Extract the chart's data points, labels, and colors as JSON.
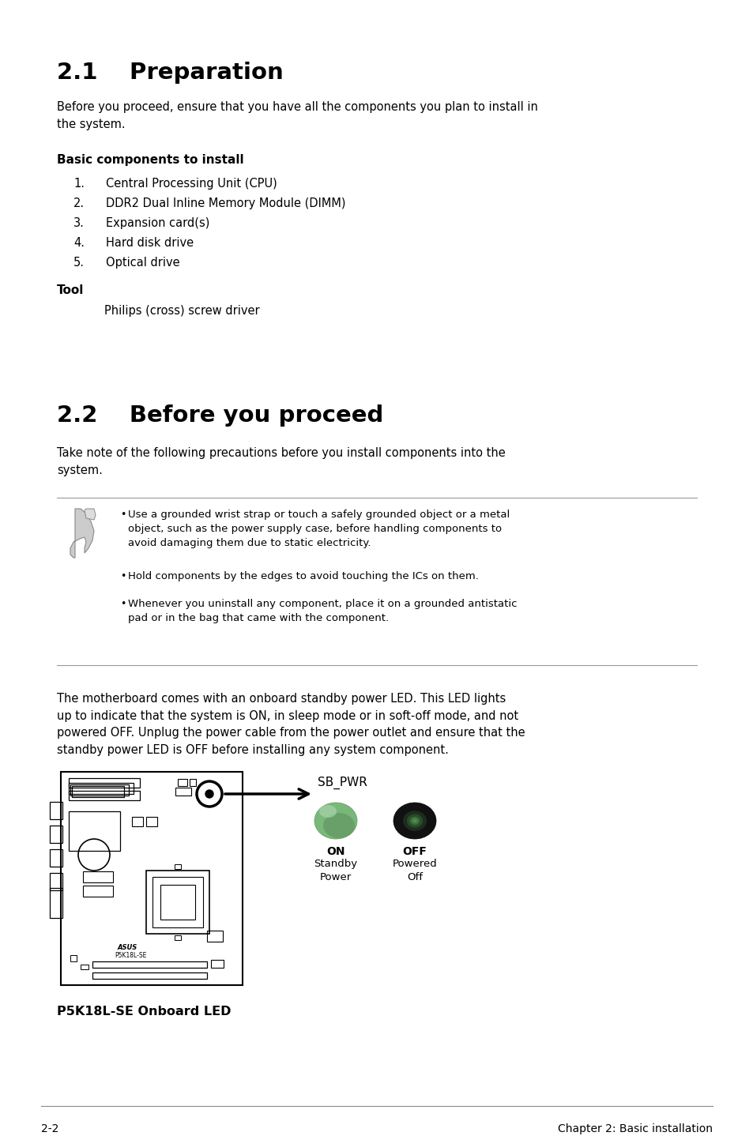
{
  "title_21": "2.1    Preparation",
  "para_21": "Before you proceed, ensure that you have all the components you plan to install in\nthe system.",
  "subhead_basic": "Basic components to install",
  "list_items": [
    "Central Processing Unit (CPU)",
    "DDR2 Dual Inline Memory Module (DIMM)",
    "Expansion card(s)",
    "Hard disk drive",
    "Optical drive"
  ],
  "tool_head": "Tool",
  "tool_item": "Philips (cross) screw driver",
  "title_22": "2.2    Before you proceed",
  "para_22": "Take note of the following precautions before you install components into the\nsystem.",
  "bullet1": "Use a grounded wrist strap or touch a safely grounded object or a metal\nobject, such as the power supply case, before handling components to\navoid damaging them due to static electricity.",
  "bullet2": "Hold components by the edges to avoid touching the ICs on them.",
  "bullet3": "Whenever you uninstall any component, place it on a grounded antistatic\npad or in the bag that came with the component.",
  "para_led": "The motherboard comes with an onboard standby power LED. This LED lights\nup to indicate that the system is ON, in sleep mode or in soft-off mode, and not\npowered OFF. Unplug the power cable from the power outlet and ensure that the\nstandby power LED is OFF before installing any system component.",
  "sb_pwr_label": "SB_PWR",
  "on_label": "ON",
  "on_sub": "Standby\nPower",
  "off_label": "OFF",
  "off_sub": "Powered\nOff",
  "board_label": "P5K18L-SE Onboard LED",
  "footer_left": "2-2",
  "footer_right": "Chapter 2: Basic installation",
  "bg_color": "#ffffff",
  "text_color": "#000000"
}
